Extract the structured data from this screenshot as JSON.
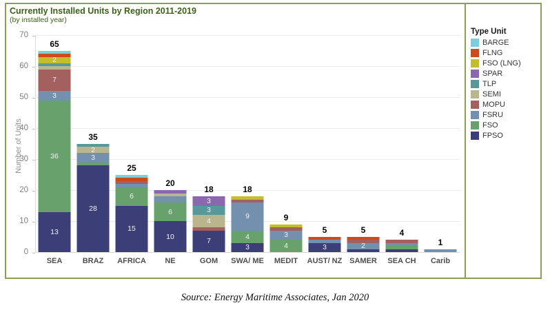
{
  "title": "Currently Installed Units by Region 2011-2019",
  "subtitle": "(by installed year)",
  "source": "Source: Energy Maritime Associates, Jan 2020",
  "legend": {
    "title": "Type Unit",
    "items": [
      {
        "label": "BARGE",
        "color": "#79d0db"
      },
      {
        "label": "FLNG",
        "color": "#cb4b1d"
      },
      {
        "label": "FSO (LNG)",
        "color": "#c4bd2d"
      },
      {
        "label": "SPAR",
        "color": "#8b68ae"
      },
      {
        "label": "TLP",
        "color": "#55999a"
      },
      {
        "label": "SEMI",
        "color": "#b9b68d"
      },
      {
        "label": "MOPU",
        "color": "#a3605f"
      },
      {
        "label": "FSRU",
        "color": "#7391ae"
      },
      {
        "label": "FSO",
        "color": "#68a16c"
      },
      {
        "label": "FPSO",
        "color": "#3c3f77"
      }
    ]
  },
  "chart_data": {
    "type": "bar",
    "stacked": true,
    "title": "Currently Installed Units by Region 2011-2019",
    "subtitle": "(by installed year)",
    "xlabel": "",
    "ylabel": "Number of Units",
    "ylim": [
      0,
      70
    ],
    "yticks": [
      0,
      10,
      20,
      30,
      40,
      50,
      60,
      70
    ],
    "grid": true,
    "legend_position": "right",
    "categories": [
      "SEA",
      "BRAZ",
      "AFRICA",
      "NE",
      "GOM",
      "SWA/ ME",
      "MEDIT",
      "AUST/ NZ",
      "SAMER",
      "SEA CH",
      "Carib"
    ],
    "totals": [
      65,
      35,
      25,
      20,
      18,
      18,
      9,
      5,
      5,
      4,
      1
    ],
    "series": [
      {
        "name": "FPSO",
        "color": "#3c3f77",
        "values": [
          13,
          28,
          15,
          10,
          7,
          3,
          0,
          3,
          1,
          1,
          0
        ],
        "labels": [
          "13",
          "28",
          "15",
          "10",
          "7",
          "3",
          "",
          "3",
          "",
          "",
          ""
        ]
      },
      {
        "name": "FSO",
        "color": "#68a16c",
        "values": [
          36,
          1,
          6,
          6,
          0,
          4,
          4,
          0,
          0,
          1,
          0
        ],
        "labels": [
          "36",
          "",
          "6",
          "6",
          "",
          "4",
          "4",
          "",
          "",
          "",
          ""
        ]
      },
      {
        "name": "FSRU",
        "color": "#7391ae",
        "values": [
          3,
          3,
          1,
          2,
          0,
          9,
          3,
          1,
          2,
          1,
          1
        ],
        "labels": [
          "3",
          "3",
          "",
          "",
          "",
          "9",
          "3",
          "",
          "2",
          "",
          ""
        ]
      },
      {
        "name": "MOPU",
        "color": "#a3605f",
        "values": [
          7,
          0,
          1,
          0,
          1,
          1,
          1,
          0,
          1,
          1,
          0
        ],
        "labels": [
          "7",
          "",
          "",
          "",
          "",
          "",
          "",
          "",
          "",
          "",
          ""
        ]
      },
      {
        "name": "SEMI",
        "color": "#b9b68d",
        "values": [
          1,
          2,
          0,
          1,
          4,
          0,
          0,
          0,
          0,
          0,
          0
        ],
        "labels": [
          "",
          "2",
          "",
          "",
          "4",
          "",
          "",
          "",
          "",
          "",
          ""
        ]
      },
      {
        "name": "TLP",
        "color": "#55999a",
        "values": [
          1,
          1,
          0,
          0,
          3,
          0,
          0,
          0,
          0,
          0,
          0
        ],
        "labels": [
          "",
          "",
          "",
          "",
          "3",
          "",
          "",
          "",
          "",
          "",
          ""
        ]
      },
      {
        "name": "SPAR",
        "color": "#8b68ae",
        "values": [
          0,
          0,
          0,
          1,
          3,
          0,
          0,
          0,
          0,
          0,
          0
        ],
        "labels": [
          "",
          "",
          "",
          "",
          "3",
          "",
          "",
          "",
          "",
          "",
          ""
        ]
      },
      {
        "name": "FSO (LNG)",
        "color": "#c4bd2d",
        "values": [
          2,
          0,
          0,
          0,
          0,
          1,
          1,
          0,
          0,
          0,
          0
        ],
        "labels": [
          "2",
          "",
          "",
          "",
          "",
          "",
          "",
          "",
          "",
          "",
          ""
        ]
      },
      {
        "name": "FLNG",
        "color": "#cb4b1d",
        "values": [
          1,
          0,
          1,
          0,
          0,
          0,
          0,
          1,
          1,
          0,
          0
        ],
        "labels": [
          "",
          "",
          "",
          "",
          "",
          "",
          "",
          "",
          "",
          "",
          ""
        ]
      },
      {
        "name": "BARGE",
        "color": "#79d0db",
        "values": [
          1,
          0,
          1,
          0,
          0,
          0,
          0,
          0,
          0,
          0,
          0
        ],
        "labels": [
          "",
          "",
          "",
          "",
          "",
          "",
          "",
          "",
          "",
          "",
          ""
        ]
      }
    ]
  }
}
